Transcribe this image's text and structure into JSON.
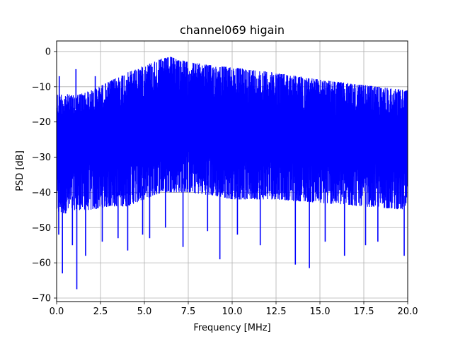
{
  "chart_data": {
    "type": "line",
    "title": "channel069 higain",
    "xlabel": "Frequency [MHz]",
    "ylabel": "PSD [dB]",
    "xlim": [
      0,
      20
    ],
    "ylim": [
      -71,
      3
    ],
    "grid": true,
    "color": "#0000ff",
    "xticks": [
      0,
      2.5,
      5,
      7.5,
      10,
      12.5,
      15,
      17.5,
      20
    ],
    "xtick_labels": [
      "0.0",
      "2.5",
      "5.0",
      "7.5",
      "10.0",
      "12.5",
      "15.0",
      "17.5",
      "20.0"
    ],
    "yticks": [
      0,
      -10,
      -20,
      -30,
      -40,
      -50,
      -60,
      -70
    ],
    "ytick_labels": [
      "0",
      "−10",
      "−20",
      "−30",
      "−40",
      "−50",
      "−60",
      "−70"
    ],
    "envelope": {
      "x": [
        0,
        0.5,
        1.0,
        2.0,
        3.0,
        4.0,
        5.0,
        6.0,
        6.5,
        7.5,
        9.0,
        10.0,
        12.5,
        15.0,
        17.5,
        20.0
      ],
      "upper": [
        -12,
        -12,
        -12.5,
        -11,
        -8.5,
        -6,
        -4,
        -2,
        -1.5,
        -3,
        -4,
        -4.5,
        -6,
        -8,
        -9.5,
        -11
      ],
      "lower": [
        -46,
        -46,
        -45,
        -45,
        -44,
        -44,
        -42,
        -40,
        -40,
        -40,
        -41,
        -42,
        -42,
        -43,
        -44,
        -45
      ]
    },
    "spikes_up": [
      {
        "x": 0.15,
        "y": -7
      },
      {
        "x": 1.1,
        "y": -5
      },
      {
        "x": 2.2,
        "y": -7
      }
    ],
    "spikes_down": [
      {
        "x": 0.12,
        "y": -52
      },
      {
        "x": 0.33,
        "y": -63
      },
      {
        "x": 0.9,
        "y": -55
      },
      {
        "x": 1.15,
        "y": -67.5
      },
      {
        "x": 1.65,
        "y": -58
      },
      {
        "x": 2.6,
        "y": -54
      },
      {
        "x": 3.5,
        "y": -53
      },
      {
        "x": 4.05,
        "y": -56.5
      },
      {
        "x": 4.9,
        "y": -52
      },
      {
        "x": 5.3,
        "y": -53
      },
      {
        "x": 6.2,
        "y": -50
      },
      {
        "x": 7.2,
        "y": -55.5
      },
      {
        "x": 8.6,
        "y": -51
      },
      {
        "x": 9.3,
        "y": -59
      },
      {
        "x": 10.3,
        "y": -52
      },
      {
        "x": 11.6,
        "y": -55
      },
      {
        "x": 13.6,
        "y": -60.5
      },
      {
        "x": 14.4,
        "y": -61.5
      },
      {
        "x": 15.3,
        "y": -54
      },
      {
        "x": 16.4,
        "y": -58
      },
      {
        "x": 17.6,
        "y": -55
      },
      {
        "x": 18.3,
        "y": -54
      },
      {
        "x": 19.8,
        "y": -58
      }
    ]
  }
}
